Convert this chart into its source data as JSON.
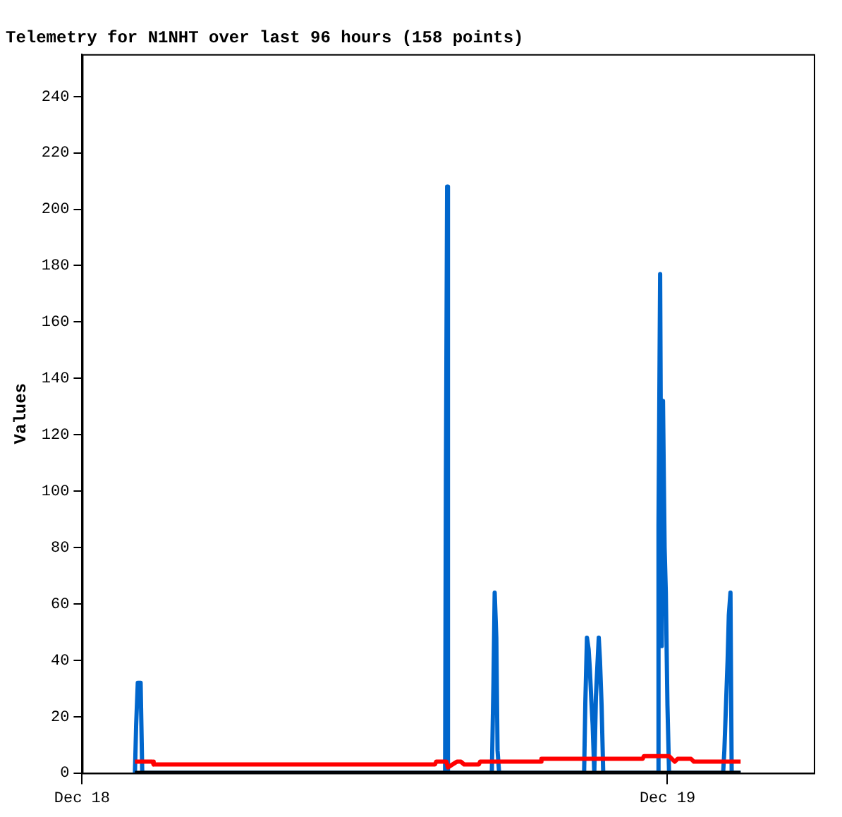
{
  "chart_data": {
    "type": "line",
    "title": "Telemetry for N1NHT over last 96 hours (158 points)",
    "ylabel": "Values",
    "xlim": [
      "--12-18",
      "--12-19T06:00"
    ],
    "xticks": [
      {
        "value": "--12-18",
        "label": "Dec 18"
      },
      {
        "value": "--12-19",
        "label": "Dec 19"
      }
    ],
    "ylim": [
      0,
      255
    ],
    "yticks": [
      0,
      20,
      40,
      60,
      80,
      100,
      120,
      140,
      160,
      180,
      200,
      220,
      240
    ],
    "grid": false,
    "legend": false,
    "marker": "none",
    "line_style": "solid",
    "series": [
      {
        "color": "#000000",
        "x": [
          "--12-18T02:10",
          "--12-19T03:00"
        ],
        "values": [
          0,
          0
        ]
      },
      {
        "color": "#ff0000",
        "x": [
          "--12-18T02:10",
          "--12-18T02:53",
          "--12-18T02:56",
          "--12-18T14:28",
          "--12-18T14:31",
          "--12-18T14:56",
          "--12-18T15:00",
          "--12-18T15:11",
          "--12-18T15:22",
          "--12-18T15:32",
          "--12-18T15:40",
          "--12-18T16:16",
          "--12-18T16:19",
          "--12-18T18:47",
          "--12-18T18:50",
          "--12-18T22:59",
          "--12-18T23:02",
          "--12-19T00:04",
          "--12-19T00:11",
          "--12-19T00:18",
          "--12-19T00:25",
          "--12-19T00:58",
          "--12-19T01:05",
          "--12-19T03:00"
        ],
        "values": [
          4,
          4,
          3,
          3,
          4,
          4,
          2,
          3,
          4,
          4,
          3,
          3,
          4,
          4,
          5,
          5,
          6,
          6,
          5,
          4,
          5,
          5,
          4,
          4
        ]
      },
      {
        "color": "#0066cc",
        "x": [
          "--12-18T02:10",
          "--12-18T02:13",
          "--12-18T02:17",
          "--12-18T02:24",
          "--12-18T02:28",
          "--12-18T14:53",
          "--12-18T14:55",
          "--12-18T14:58",
          "--12-18T15:00",
          "--12-18T16:48",
          "--12-18T16:52",
          "--12-18T16:55",
          "--12-18T16:59",
          "--12-18T17:02",
          "--12-18T17:06",
          "--12-18T20:35",
          "--12-18T20:38",
          "--12-18T20:42",
          "--12-18T20:46",
          "--12-18T20:49",
          "--12-18T20:53",
          "--12-18T20:56",
          "--12-18T21:00",
          "--12-18T21:04",
          "--12-18T21:07",
          "--12-18T21:11",
          "--12-18T21:14",
          "--12-18T21:18",
          "--12-18T21:22",
          "--12-18T23:35",
          "--12-18T23:38",
          "--12-18T23:42",
          "--12-18T23:46",
          "--12-18T23:49",
          "--12-18T23:53",
          "--12-18T23:56",
          "--12-19T00:00",
          "--12-19T00:04",
          "--12-19T02:17",
          "--12-19T02:20",
          "--12-19T02:24",
          "--12-19T02:28",
          "--12-19T02:31",
          "--12-19T02:35",
          "--12-19T02:38",
          "--12-19T03:00"
        ],
        "values": [
          0,
          17,
          32,
          32,
          0,
          0,
          104,
          208,
          0,
          0,
          32,
          64,
          48,
          8,
          0,
          0,
          25,
          48,
          44,
          37,
          25,
          17,
          0,
          27,
          36,
          48,
          40,
          24,
          0,
          0,
          88,
          177,
          45,
          132,
          80,
          64,
          24,
          0,
          0,
          8,
          24,
          40,
          56,
          64,
          0,
          0
        ]
      }
    ]
  }
}
